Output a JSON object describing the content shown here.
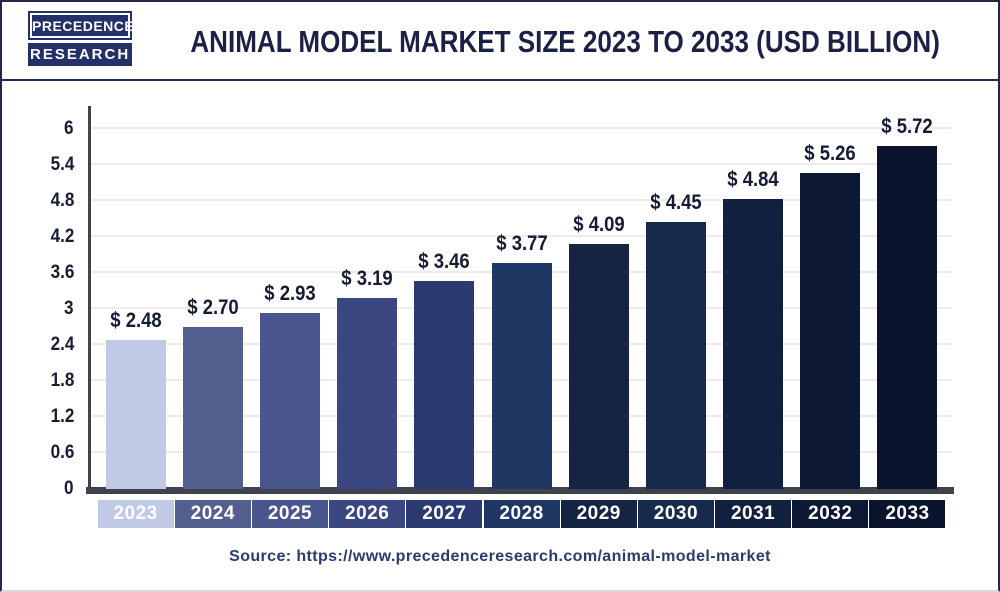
{
  "header": {
    "logo": {
      "line1": "PRECEDENCE",
      "line2": "RESEARCH"
    },
    "title": "ANIMAL MODEL MARKET SIZE 2023 TO 2033 (USD BILLION)"
  },
  "footer": {
    "source_text": "Source: https://www.precedenceresearch.com/animal-model-market"
  },
  "colors": {
    "brand_navy": "#233168",
    "title_navy": "#1a2145",
    "axis": "#3e434b",
    "gridline": "#ececec",
    "value_label": "#141b33",
    "source_text": "#2c3a70"
  },
  "chart_data": {
    "type": "bar",
    "title": "Animal Model Market Size 2023 to 2033 (USD Billion)",
    "xlabel": "",
    "ylabel": "",
    "unit": "USD Billion",
    "categories": [
      "2023",
      "2024",
      "2025",
      "2026",
      "2027",
      "2028",
      "2029",
      "2030",
      "2031",
      "2032",
      "2033"
    ],
    "values": [
      2.48,
      2.7,
      2.93,
      3.19,
      3.46,
      3.77,
      4.09,
      4.45,
      4.84,
      5.26,
      5.72
    ],
    "value_labels": [
      "$ 2.48",
      "$ 2.70",
      "$ 2.93",
      "$ 3.19",
      "$ 3.46",
      "$ 3.77",
      "$ 4.09",
      "$ 4.45",
      "$ 4.84",
      "$ 5.26",
      "$ 5.72"
    ],
    "bar_colors": [
      "#c0cae7",
      "#53608f",
      "#49558d",
      "#3a4781",
      "#2c3a72",
      "#1f3763",
      "#152443",
      "#172a4c",
      "#12203f",
      "#0d1834",
      "#0a142c"
    ],
    "ylim": [
      0,
      6
    ],
    "yticks": [
      0,
      0.6,
      1.2,
      1.8,
      2.4,
      3,
      3.6,
      4.2,
      4.8,
      5.4,
      6
    ],
    "ytick_labels": [
      "0",
      "0.6",
      "1.2",
      "1.8",
      "2.4",
      "3",
      "3.6",
      "4.2",
      "4.8",
      "5.4",
      "6"
    ],
    "grid": "horizontal",
    "legend": "none"
  }
}
